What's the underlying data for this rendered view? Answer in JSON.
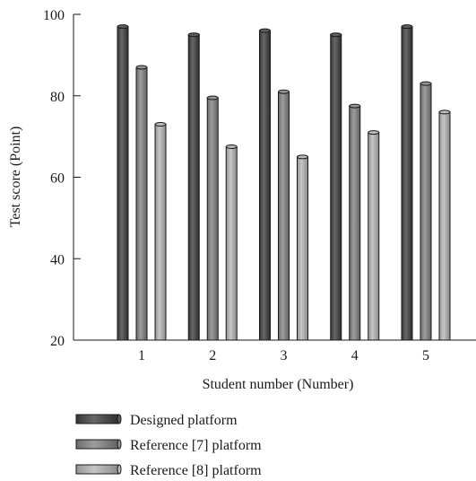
{
  "chart_data": {
    "type": "bar",
    "title": "",
    "xlabel": "Student number (Number)",
    "ylabel": "Test score (Point)",
    "ylim": [
      20,
      100
    ],
    "yticks": [
      20,
      40,
      60,
      80,
      100
    ],
    "grid": false,
    "legend_position": "bottom-left",
    "categories": [
      "1",
      "2",
      "3",
      "4",
      "5"
    ],
    "series": [
      {
        "name": "Designed platform",
        "color": "#4a4a4a",
        "values": [
          97,
          95,
          96,
          95,
          97
        ]
      },
      {
        "name": "Reference [7] platform",
        "color": "#7f7f7f",
        "values": [
          87,
          79.5,
          81,
          77.5,
          83
        ]
      },
      {
        "name": "Reference [8] platform",
        "color": "#a8a8a8",
        "values": [
          73,
          67.5,
          65,
          71,
          76
        ]
      }
    ]
  }
}
